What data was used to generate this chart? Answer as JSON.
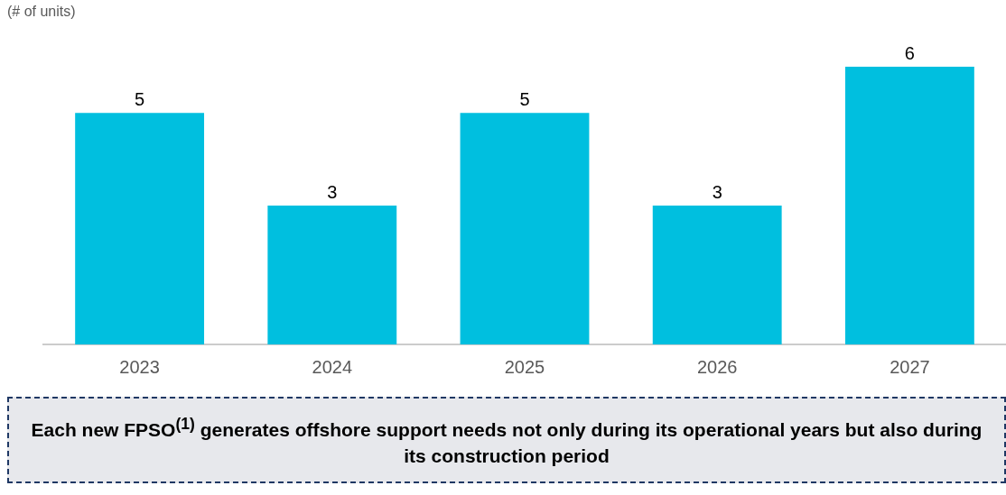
{
  "chart_data": {
    "type": "bar",
    "ylabel": "(# of units)",
    "categories": [
      "2023",
      "2024",
      "2025",
      "2026",
      "2027"
    ],
    "values": [
      5,
      3,
      5,
      3,
      6
    ],
    "color": "#00bfdf",
    "data_labels": true,
    "grid": false,
    "legend": false,
    "annotations": [
      "Each new FPSO$^{(1)}$ generates offshore support needs not only during its operational years but also during its construction period"
    ]
  }
}
